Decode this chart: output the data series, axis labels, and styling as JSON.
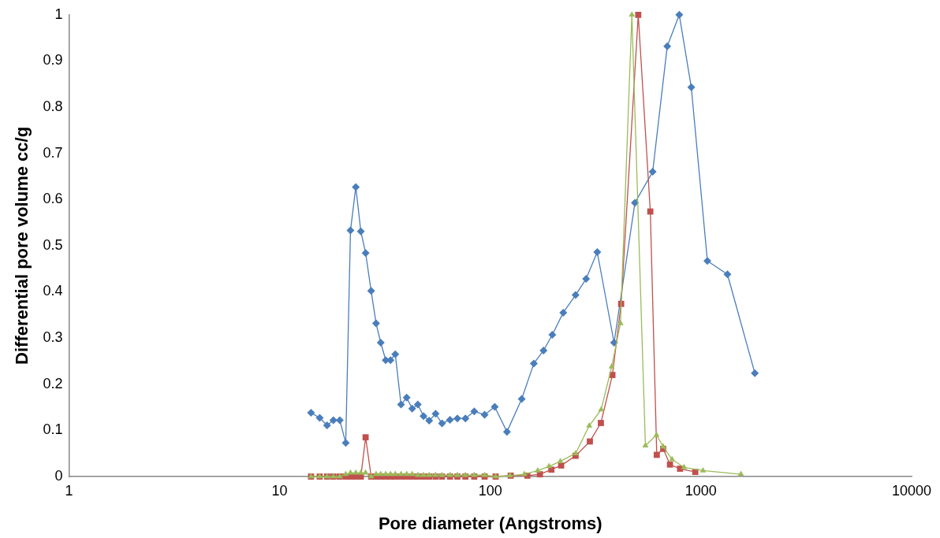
{
  "chart_data": {
    "type": "line",
    "xlabel": "Pore diameter (Angstroms)",
    "ylabel": "Differential pore volume cc/g",
    "log": "x",
    "xlim": [
      1,
      10000
    ],
    "ylim": [
      0,
      1
    ],
    "xticks": [
      1,
      10,
      100,
      1000,
      10000
    ],
    "yticks": [
      0,
      0.1,
      0.2,
      0.3,
      0.4,
      0.5,
      0.6,
      0.7,
      0.8,
      0.9,
      1
    ],
    "grid": false,
    "legend": false,
    "line_style": "solid",
    "series": [
      {
        "color": "#4a7ebb",
        "marker": "diamond",
        "x": [
          14.1,
          15.5,
          16.8,
          18.0,
          19.3,
          20.6,
          21.7,
          23.0,
          24.3,
          25.6,
          27.2,
          28.7,
          30.2,
          31.9,
          33.6,
          35.4,
          37.7,
          40.1,
          42.6,
          45.3,
          48.2,
          51.3,
          55.0,
          59.0,
          64.4,
          69.8,
          76.2,
          83.9,
          94.0,
          105,
          120,
          141,
          161,
          179,
          197,
          222,
          254,
          285,
          322,
          387,
          486,
          590,
          692,
          789,
          900,
          1073,
          1336,
          1802
        ],
        "values": [
          0.138,
          0.127,
          0.111,
          0.122,
          0.122,
          0.073,
          0.533,
          0.627,
          0.531,
          0.484,
          0.402,
          0.332,
          0.29,
          0.252,
          0.252,
          0.265,
          0.156,
          0.171,
          0.147,
          0.156,
          0.131,
          0.121,
          0.136,
          0.115,
          0.123,
          0.126,
          0.126,
          0.141,
          0.134,
          0.151,
          0.097,
          0.168,
          0.245,
          0.273,
          0.307,
          0.355,
          0.393,
          0.428,
          0.486,
          0.29,
          0.593,
          0.66,
          0.932,
          1.0,
          0.843,
          0.467,
          0.438,
          0.224
        ]
      },
      {
        "color": "#c0504d",
        "marker": "square",
        "x": [
          14.1,
          15.5,
          16.8,
          18.0,
          19.3,
          20.6,
          21.7,
          23.0,
          24.3,
          25.6,
          27.2,
          28.7,
          30.2,
          31.9,
          33.6,
          35.4,
          37.7,
          40.1,
          42.6,
          45.3,
          48.2,
          51.3,
          55.0,
          59.0,
          64.4,
          69.8,
          76.2,
          83.9,
          94.0,
          106,
          125,
          150,
          172,
          195,
          217,
          254,
          297,
          335,
          380,
          418,
          504,
          575,
          617,
          662,
          713,
          796,
          940
        ],
        "values": [
          0,
          0,
          0,
          0,
          0,
          0,
          0,
          0,
          0,
          0.085,
          0,
          0,
          0,
          0,
          0,
          0,
          0,
          0,
          0,
          0,
          0,
          0,
          0,
          0,
          0,
          0,
          0,
          0,
          0,
          0,
          0.002,
          0.002,
          0.005,
          0.015,
          0.024,
          0.045,
          0.076,
          0.116,
          0.22,
          0.374,
          1.0,
          0.574,
          0.047,
          0.06,
          0.026,
          0.017,
          0.01
        ]
      },
      {
        "color": "#9bbb59",
        "marker": "triangle",
        "x": [
          14.1,
          15.5,
          16.8,
          18.0,
          19.3,
          20.6,
          21.7,
          23.0,
          24.3,
          25.6,
          27.2,
          28.7,
          30.2,
          31.9,
          33.6,
          35.4,
          37.7,
          40.1,
          42.6,
          45.3,
          48.2,
          51.3,
          55.0,
          59.0,
          64.4,
          69.8,
          76.2,
          83.9,
          94.0,
          106,
          124,
          145,
          168,
          190,
          215,
          254,
          295,
          336,
          377,
          415,
          470,
          545,
          615,
          662,
          729,
          831,
          1023,
          1548
        ],
        "values": [
          0,
          0,
          0,
          0,
          0,
          0.005,
          0.008,
          0.008,
          0.008,
          0.008,
          0,
          0.005,
          0.005,
          0.005,
          0.005,
          0.005,
          0.005,
          0.005,
          0.005,
          0.003,
          0.003,
          0.003,
          0.003,
          0.003,
          0.003,
          0.003,
          0.003,
          0.003,
          0.003,
          0,
          0.002,
          0.005,
          0.013,
          0.022,
          0.033,
          0.05,
          0.11,
          0.145,
          0.238,
          0.332,
          1.0,
          0.067,
          0.09,
          0.065,
          0.037,
          0.02,
          0.013,
          0.005
        ]
      }
    ]
  }
}
